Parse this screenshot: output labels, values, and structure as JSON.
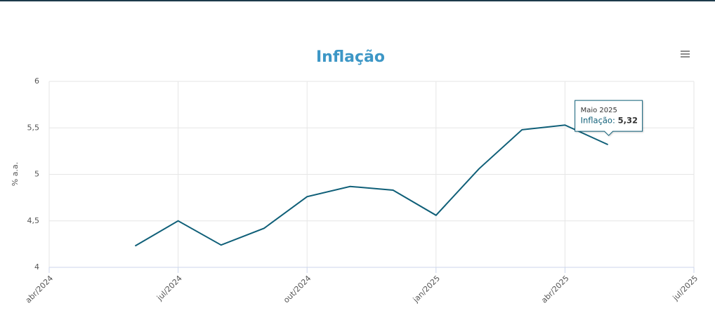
{
  "chart_data": {
    "type": "line",
    "title": "Inflação",
    "y_label": "% a.a.",
    "x": [
      "2024-06",
      "2024-07",
      "2024-08",
      "2024-09",
      "2024-10",
      "2024-11",
      "2024-12",
      "2025-01",
      "2025-02",
      "2025-03",
      "2025-04",
      "2025-05"
    ],
    "series": [
      {
        "name": "Inflação",
        "color": "#0f5f78",
        "values": [
          4.23,
          4.5,
          4.24,
          4.42,
          4.76,
          4.87,
          4.83,
          4.56,
          5.06,
          5.48,
          5.53,
          5.32
        ],
        "value_labels": [
          null,
          null,
          null,
          null,
          null,
          null,
          null,
          null,
          null,
          null,
          null,
          "5,32"
        ]
      }
    ],
    "xlim": [
      "2024-04",
      "2025-07"
    ],
    "xticks": [
      {
        "value": "2024-04",
        "label": "abr/2024"
      },
      {
        "value": "2024-07",
        "label": "jul/2024"
      },
      {
        "value": "2024-10",
        "label": "out/2024"
      },
      {
        "value": "2025-01",
        "label": "jan/2025"
      },
      {
        "value": "2025-04",
        "label": "abr/2025"
      },
      {
        "value": "2025-07",
        "label": "jul/2025"
      }
    ],
    "ylim": [
      4,
      6
    ],
    "yticks": [
      4,
      {
        "value": 4.5,
        "label": "4,5"
      },
      5,
      {
        "value": 5.5,
        "label": "5,5"
      },
      6
    ],
    "grid": true,
    "tooltip": {
      "header": "Maio 2025",
      "series_label": "Inflação:"
    }
  }
}
